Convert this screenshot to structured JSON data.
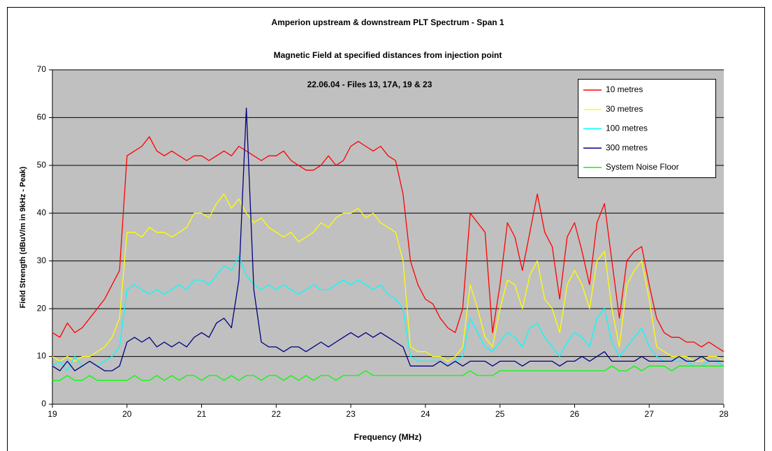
{
  "chart_data": {
    "type": "line",
    "title": "Amperion upstream & downstream PLT Spectrum - Span 1",
    "subtitle": "Magnetic Field at specified distances from injection point",
    "annotation": "22.06.04 - Files 13, 17A, 19 & 23",
    "xlabel": "Frequency (MHz)",
    "ylabel": "Field Strength (dBuV/m in 9kHz - Peak)",
    "xlim": [
      19,
      28
    ],
    "xticks": [
      19,
      20,
      21,
      22,
      23,
      24,
      25,
      26,
      27,
      28
    ],
    "ylim": [
      0,
      70
    ],
    "yticks": [
      0,
      10,
      20,
      30,
      40,
      50,
      60,
      70
    ],
    "grid": true,
    "legend": "top-right",
    "background": "#c0c0c0",
    "x": [
      19.0,
      19.1,
      19.2,
      19.3,
      19.4,
      19.5,
      19.6,
      19.7,
      19.8,
      19.9,
      20.0,
      20.1,
      20.2,
      20.3,
      20.4,
      20.5,
      20.6,
      20.7,
      20.8,
      20.9,
      21.0,
      21.1,
      21.2,
      21.3,
      21.4,
      21.5,
      21.6,
      21.7,
      21.8,
      21.9,
      22.0,
      22.1,
      22.2,
      22.3,
      22.4,
      22.5,
      22.6,
      22.7,
      22.8,
      22.9,
      23.0,
      23.1,
      23.2,
      23.3,
      23.4,
      23.5,
      23.6,
      23.7,
      23.8,
      23.9,
      24.0,
      24.1,
      24.2,
      24.3,
      24.4,
      24.5,
      24.6,
      24.7,
      24.8,
      24.9,
      25.0,
      25.1,
      25.2,
      25.3,
      25.4,
      25.5,
      25.6,
      25.7,
      25.8,
      25.9,
      26.0,
      26.1,
      26.2,
      26.3,
      26.4,
      26.5,
      26.6,
      26.7,
      26.8,
      26.9,
      27.0,
      27.1,
      27.2,
      27.3,
      27.4,
      27.5,
      27.6,
      27.7,
      27.8,
      27.9,
      28.0
    ],
    "series": [
      {
        "name": "10 metres",
        "color": "#ff0000",
        "values": [
          15,
          14,
          17,
          15,
          16,
          18,
          20,
          22,
          25,
          28,
          52,
          53,
          54,
          56,
          53,
          52,
          53,
          52,
          51,
          52,
          52,
          51,
          52,
          53,
          52,
          54,
          53,
          52,
          51,
          52,
          52,
          53,
          51,
          50,
          49,
          49,
          50,
          52,
          50,
          51,
          54,
          55,
          54,
          53,
          54,
          52,
          51,
          44,
          30,
          25,
          22,
          21,
          18,
          16,
          15,
          20,
          40,
          38,
          36,
          15,
          25,
          38,
          35,
          28,
          36,
          44,
          36,
          33,
          22,
          35,
          38,
          32,
          25,
          38,
          42,
          30,
          18,
          30,
          32,
          33,
          25,
          18,
          15,
          14,
          14,
          13,
          13,
          12,
          13,
          12,
          11
        ]
      },
      {
        "name": "30 metres",
        "color": "#ffff00",
        "values": [
          10,
          9,
          10,
          9,
          10,
          10,
          11,
          12,
          14,
          18,
          36,
          36,
          35,
          37,
          36,
          36,
          35,
          36,
          37,
          40,
          40,
          39,
          42,
          44,
          41,
          43,
          40,
          38,
          39,
          37,
          36,
          35,
          36,
          34,
          35,
          36,
          38,
          37,
          39,
          40,
          40,
          41,
          39,
          40,
          38,
          37,
          36,
          30,
          12,
          11,
          11,
          10,
          10,
          9,
          10,
          12,
          25,
          20,
          14,
          12,
          20,
          26,
          25,
          20,
          27,
          30,
          22,
          20,
          15,
          25,
          28,
          25,
          20,
          30,
          32,
          20,
          12,
          25,
          28,
          30,
          22,
          12,
          11,
          10,
          10,
          10,
          9,
          9,
          10,
          10,
          9
        ]
      },
      {
        "name": "100 metres",
        "color": "#00ffff",
        "values": [
          8,
          9,
          7,
          10,
          8,
          9,
          8,
          9,
          10,
          12,
          24,
          25,
          24,
          23,
          24,
          23,
          24,
          25,
          24,
          26,
          26,
          25,
          27,
          29,
          28,
          31,
          27,
          25,
          24,
          25,
          24,
          25,
          24,
          23,
          24,
          25,
          24,
          24,
          25,
          26,
          25,
          26,
          25,
          24,
          25,
          23,
          22,
          20,
          10,
          9,
          9,
          9,
          9,
          8,
          9,
          10,
          18,
          15,
          12,
          11,
          13,
          15,
          14,
          12,
          16,
          17,
          14,
          12,
          10,
          13,
          15,
          14,
          12,
          18,
          20,
          13,
          10,
          12,
          14,
          16,
          12,
          10,
          9,
          9,
          9,
          9,
          8,
          8,
          9,
          9,
          8
        ]
      },
      {
        "name": "300 metres",
        "color": "#000080",
        "values": [
          8,
          7,
          9,
          7,
          8,
          9,
          8,
          7,
          7,
          8,
          13,
          14,
          13,
          14,
          12,
          13,
          12,
          13,
          12,
          14,
          15,
          14,
          17,
          18,
          16,
          26,
          62,
          24,
          13,
          12,
          12,
          11,
          12,
          12,
          11,
          12,
          13,
          12,
          13,
          14,
          15,
          14,
          15,
          14,
          15,
          14,
          13,
          12,
          8,
          8,
          8,
          8,
          9,
          8,
          9,
          8,
          9,
          9,
          9,
          8,
          9,
          9,
          9,
          8,
          9,
          9,
          9,
          9,
          8,
          9,
          9,
          10,
          9,
          10,
          11,
          9,
          9,
          9,
          9,
          10,
          9,
          9,
          9,
          9,
          10,
          9,
          9,
          10,
          9,
          9,
          9
        ]
      },
      {
        "name": "System Noise Floor",
        "color": "#00ff00",
        "values": [
          5,
          5,
          6,
          5,
          5,
          6,
          5,
          5,
          5,
          5,
          5,
          6,
          5,
          5,
          6,
          5,
          6,
          5,
          6,
          6,
          5,
          6,
          6,
          5,
          6,
          5,
          6,
          6,
          5,
          6,
          6,
          5,
          6,
          5,
          6,
          5,
          6,
          6,
          5,
          6,
          6,
          6,
          7,
          6,
          6,
          6,
          6,
          6,
          6,
          6,
          6,
          6,
          6,
          6,
          6,
          6,
          7,
          6,
          6,
          6,
          7,
          7,
          7,
          7,
          7,
          7,
          7,
          7,
          7,
          7,
          7,
          7,
          7,
          7,
          7,
          8,
          7,
          7,
          8,
          7,
          8,
          8,
          8,
          7,
          8,
          8,
          8,
          8,
          8,
          8,
          8
        ]
      }
    ]
  }
}
